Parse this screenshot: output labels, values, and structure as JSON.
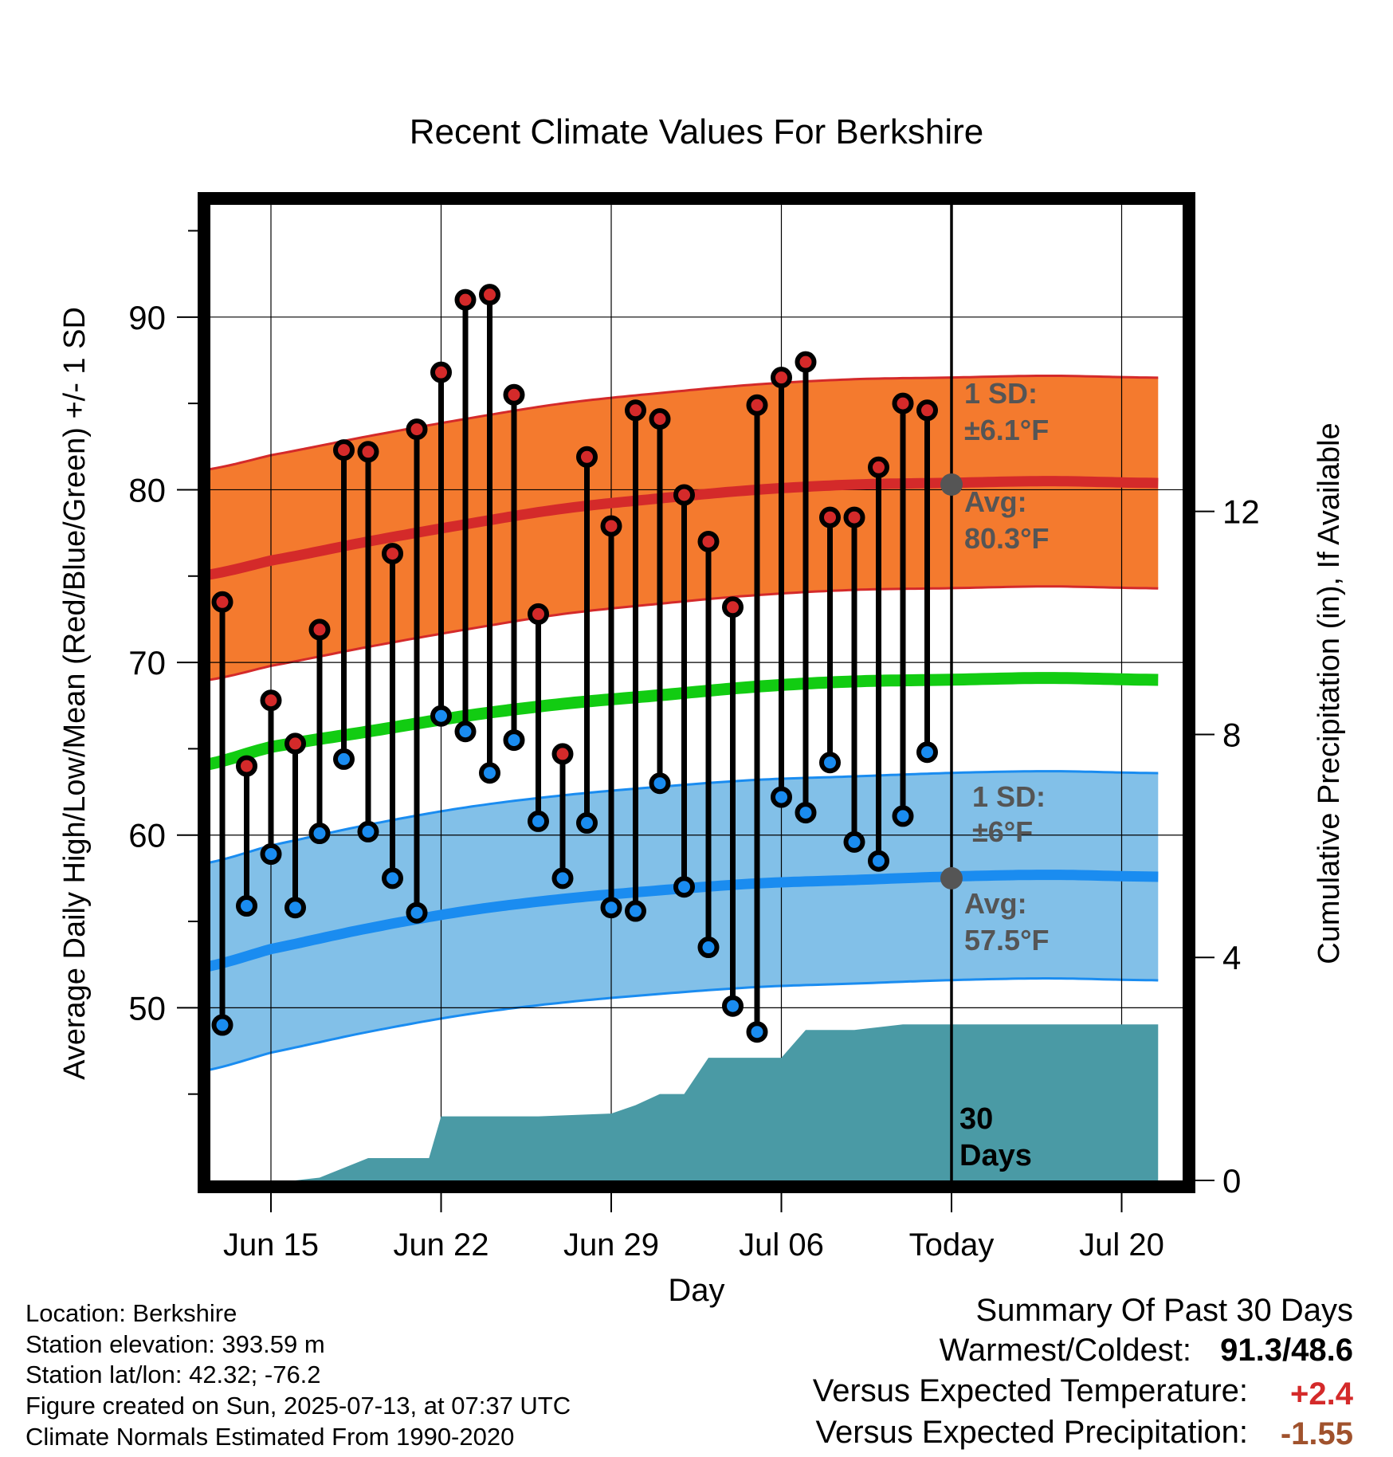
{
  "chart_data": {
    "type": "line",
    "title": "Recent Climate Values For Berkshire",
    "xlabel": "Day",
    "ylabel": "Average Daily High/Low/Mean (Red/Blue/Green) +/- 1 SD",
    "y2label": "Cumulative Precipitation (in), If Available",
    "ylim": [
      40,
      96.5
    ],
    "y2lim": [
      0,
      17.5
    ],
    "yticks": [
      50,
      60,
      70,
      80,
      90
    ],
    "y2ticks": [
      0,
      4,
      8,
      12
    ],
    "x_range_days": [
      -31.5,
      8.5
    ],
    "x_ticks": [
      {
        "day": -28,
        "label": "Jun 15"
      },
      {
        "day": -21,
        "label": "Jun 22"
      },
      {
        "day": -14,
        "label": "Jun 29"
      },
      {
        "day": -7,
        "label": "Jul 06"
      },
      {
        "day": 0,
        "label": "Today"
      },
      {
        "day": 7,
        "label": "Jul 20"
      }
    ],
    "grid": true,
    "colors": {
      "high_band": "#f47a2e",
      "high_avg": "#d42a2a",
      "low_band": "#82c0e8",
      "low_avg": "#1a8cf0",
      "mean": "#12cc12",
      "precip": "#4a9aa5",
      "high_marker": "#d42a2a",
      "low_marker": "#1a8cf0",
      "anomaly_temp": "#d42a2a",
      "anomaly_precip": "#a0522d"
    },
    "normals": {
      "days": [
        -31,
        -28,
        -24,
        -20,
        -16,
        -12,
        -8,
        -4,
        0,
        4,
        8
      ],
      "high_avg": [
        75.0,
        75.9,
        77.0,
        78.0,
        78.9,
        79.5,
        80.0,
        80.3,
        80.4,
        80.5,
        80.4
      ],
      "low_avg": [
        52.3,
        53.4,
        54.6,
        55.6,
        56.3,
        56.8,
        57.2,
        57.4,
        57.6,
        57.7,
        57.6
      ],
      "mean": [
        64.0,
        65.1,
        66.0,
        66.9,
        67.6,
        68.1,
        68.6,
        68.9,
        69.0,
        69.1,
        69.0
      ],
      "high_sd": 6.1,
      "low_sd": 6.0
    },
    "series": [
      {
        "name": "High",
        "days": [
          -30,
          -29,
          -28,
          -27,
          -26,
          -25,
          -24,
          -23,
          -22,
          -21,
          -20,
          -19,
          -18,
          -17,
          -16,
          -15,
          -14,
          -13,
          -12,
          -11,
          -10,
          -9,
          -8,
          -7,
          -6,
          -5,
          -4,
          -3,
          -2,
          -1
        ],
        "values": [
          73.5,
          64.0,
          67.8,
          65.3,
          71.9,
          82.3,
          82.2,
          76.3,
          83.5,
          86.8,
          91.0,
          91.3,
          85.5,
          72.8,
          64.7,
          81.9,
          77.9,
          84.6,
          84.1,
          79.7,
          77.0,
          73.2,
          84.9,
          86.5,
          87.4,
          78.4,
          78.4,
          81.3,
          85.0,
          84.6
        ]
      },
      {
        "name": "Low",
        "days": [
          -30,
          -29,
          -28,
          -27,
          -26,
          -25,
          -24,
          -23,
          -22,
          -21,
          -20,
          -19,
          -18,
          -17,
          -16,
          -15,
          -14,
          -13,
          -12,
          -11,
          -10,
          -9,
          -8,
          -7,
          -6,
          -5,
          -4,
          -3,
          -2,
          -1
        ],
        "values": [
          49.0,
          55.9,
          58.9,
          55.8,
          60.1,
          64.4,
          60.2,
          57.5,
          55.5,
          66.9,
          66.0,
          63.6,
          65.5,
          60.8,
          57.5,
          60.7,
          55.8,
          55.6,
          63.0,
          57.0,
          53.5,
          50.1,
          48.6,
          62.2,
          61.3,
          64.2,
          59.6,
          58.5,
          61.1,
          64.8
        ]
      },
      {
        "name": "Cumulative Precipitation",
        "days": [
          -31.5,
          -27,
          -26,
          -24,
          -23,
          -21.5,
          -21,
          -19,
          -17,
          -14,
          -13,
          -12,
          -11,
          -10,
          -9,
          -8,
          -7,
          -6,
          -5,
          -4,
          -3,
          -2,
          -1,
          0,
          8.5
        ],
        "values": [
          0,
          0,
          0.05,
          0.4,
          0.4,
          0.4,
          1.15,
          1.15,
          1.15,
          1.2,
          1.35,
          1.55,
          1.55,
          2.2,
          2.2,
          2.2,
          2.2,
          2.7,
          2.7,
          2.7,
          2.75,
          2.8,
          2.8,
          2.8,
          2.8
        ]
      }
    ],
    "annotations": {
      "high_sd_label": "1 SD:",
      "high_sd_value": "±6.1°F",
      "high_avg_label": "Avg:",
      "high_avg_value": "80.3°F",
      "high_today_value": 80.3,
      "low_sd_label": "1 SD:",
      "low_sd_value": "±6°F",
      "low_avg_label": "Avg:",
      "low_avg_value": "57.5°F",
      "low_today_value": 57.5,
      "days_number": "30",
      "days_word": "Days"
    }
  },
  "footer_left": {
    "location": "Location: Berkshire",
    "elevation": "Station elevation: 393.59 m",
    "latlon": "Station lat/lon: 42.32; -76.2",
    "created": "Figure created on Sun, 2025-07-13, at 07:37 UTC",
    "normals": "Climate Normals Estimated From 1990-2020"
  },
  "summary": {
    "heading": "Summary Of Past 30 Days",
    "warm_cold_label": "Warmest/Coldest:",
    "warm_cold_value": "91.3/48.6",
    "temp_label": "Versus Expected Temperature:",
    "temp_value": "+2.4",
    "precip_label": "Versus Expected Precipitation:",
    "precip_value": "-1.55"
  }
}
